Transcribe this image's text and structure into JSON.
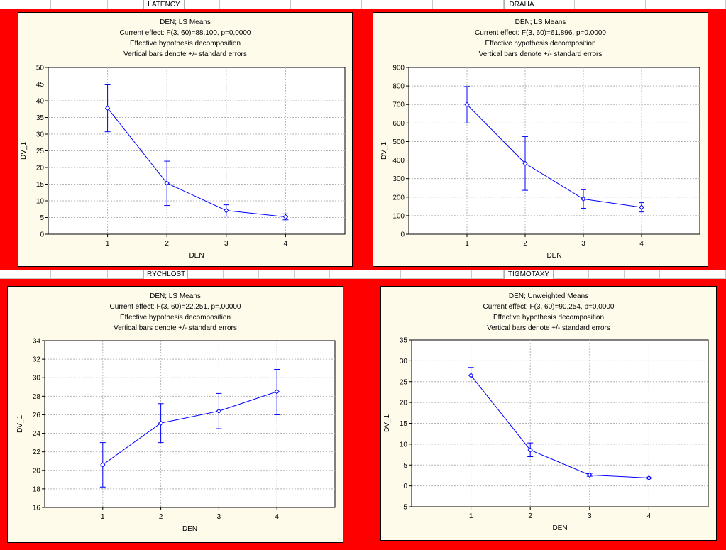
{
  "colors": {
    "background_band": "#ff0000",
    "panel_fill": "#fffbeb",
    "series": "#0000ff"
  },
  "sections": [
    {
      "header": "LATENCY",
      "titles": [
        "DEN; LS Means",
        "Current effect: F(3, 60)=88,100, p=0,0000",
        "Effective hypothesis decomposition",
        "Vertical bars denote +/- standard errors"
      ],
      "chart_data": {
        "type": "line",
        "xlabel": "DEN",
        "ylabel": "DV_1",
        "categories": [
          "1",
          "2",
          "3",
          "4"
        ],
        "values": [
          37.8,
          15.3,
          7.1,
          5.2
        ],
        "err_low": [
          30.7,
          8.6,
          5.4,
          4.3
        ],
        "err_high": [
          44.8,
          21.9,
          8.8,
          6.1
        ],
        "ylim": [
          0,
          50
        ],
        "yticks": [
          "0",
          "5",
          "10",
          "15",
          "20",
          "25",
          "30",
          "35",
          "40",
          "45",
          "50"
        ],
        "grid": true
      }
    },
    {
      "header": "DRAHA",
      "titles": [
        "DEN; LS Means",
        "Current effect: F(3, 60)=61,896, p=0,0000",
        "Effective hypothesis decomposition",
        "Vertical bars denote +/- standard errors"
      ],
      "chart_data": {
        "type": "line",
        "xlabel": "DEN",
        "ylabel": "DV_1",
        "categories": [
          "1",
          "2",
          "3",
          "4"
        ],
        "values": [
          700,
          382,
          190,
          145
        ],
        "err_low": [
          600,
          237,
          140,
          120
        ],
        "err_high": [
          797,
          527,
          240,
          170
        ],
        "ylim": [
          0,
          900
        ],
        "yticks": [
          "0",
          "100",
          "200",
          "300",
          "400",
          "500",
          "600",
          "700",
          "800",
          "900"
        ],
        "grid": true
      }
    },
    {
      "header": "RYCHLOST",
      "titles": [
        "DEN; LS Means",
        "Current effect: F(3, 60)=22,251, p=,00000",
        "Effective hypothesis decomposition",
        "Vertical bars denote +/- standard errors"
      ],
      "chart_data": {
        "type": "line",
        "xlabel": "DEN",
        "ylabel": "DV_1",
        "categories": [
          "1",
          "2",
          "3",
          "4"
        ],
        "values": [
          20.6,
          25.1,
          26.4,
          28.5
        ],
        "err_low": [
          18.2,
          23.0,
          24.5,
          26.0
        ],
        "err_high": [
          23.0,
          27.2,
          28.3,
          30.9
        ],
        "ylim": [
          16,
          34
        ],
        "yticks": [
          "16",
          "18",
          "20",
          "22",
          "24",
          "26",
          "28",
          "30",
          "32",
          "34"
        ],
        "grid": true
      }
    },
    {
      "header": "TIGMOTAXY",
      "titles": [
        "DEN; Unweighted Means",
        "Current effect: F(3, 60)=90,254, p=0,0000",
        "Effective hypothesis decomposition",
        "Vertical bars denote +/- standard errors"
      ],
      "chart_data": {
        "type": "line",
        "xlabel": "DEN",
        "ylabel": "DV_1",
        "categories": [
          "1",
          "2",
          "3",
          "4"
        ],
        "values": [
          26.5,
          8.6,
          2.6,
          1.9
        ],
        "err_low": [
          24.7,
          7.0,
          2.3,
          1.7
        ],
        "err_high": [
          28.4,
          10.3,
          3.0,
          2.1
        ],
        "ylim": [
          -5,
          35
        ],
        "yticks": [
          "-5",
          "0",
          "5",
          "10",
          "15",
          "20",
          "25",
          "30",
          "35"
        ],
        "grid": true
      }
    }
  ]
}
